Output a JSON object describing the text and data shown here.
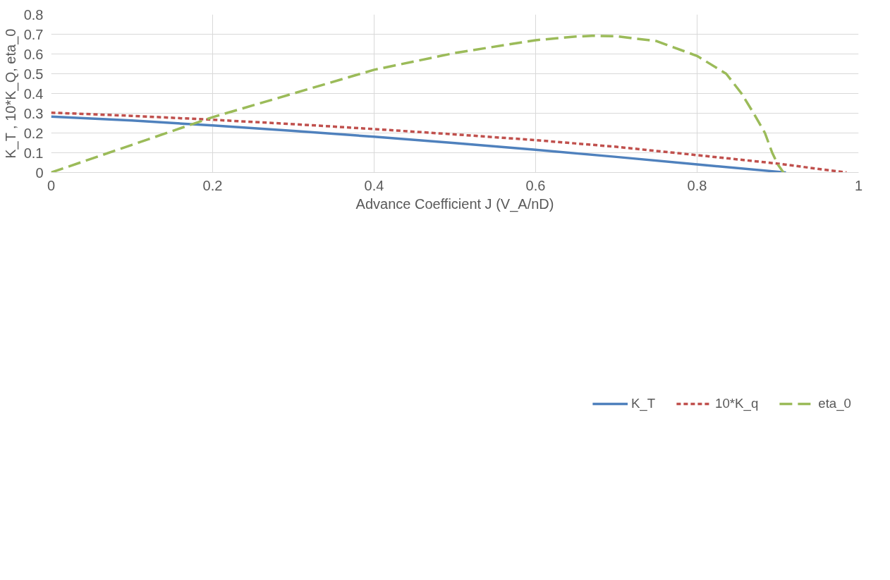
{
  "chart_data": {
    "type": "line",
    "xlabel": "Advance Coefficient J (V_A/nD)",
    "ylabel": "K_T , 10*K_Q, eta_0",
    "xlim": [
      0,
      1
    ],
    "ylim": [
      0,
      0.8
    ],
    "xticks": [
      0,
      0.2,
      0.4,
      0.6,
      0.8,
      1
    ],
    "yticks": [
      0,
      0.1,
      0.2,
      0.3,
      0.4,
      0.5,
      0.6,
      0.7,
      0.8
    ],
    "grid": true,
    "legend": "bottom",
    "series": [
      {
        "name": "K_T",
        "color": "#4f81bd",
        "line_style": "solid",
        "x": [
          0,
          0.1,
          0.2,
          0.3,
          0.4,
          0.5,
          0.6,
          0.7,
          0.8,
          0.9,
          0.91
        ],
        "values": [
          0.283,
          0.263,
          0.238,
          0.211,
          0.181,
          0.149,
          0.115,
          0.079,
          0.041,
          0.004,
          0
        ]
      },
      {
        "name": "10*K_q",
        "color": "#c0504d",
        "line_style": "dotted",
        "x": [
          0,
          0.1,
          0.2,
          0.3,
          0.4,
          0.5,
          0.6,
          0.7,
          0.8,
          0.9,
          0.985
        ],
        "values": [
          0.303,
          0.287,
          0.267,
          0.245,
          0.22,
          0.193,
          0.164,
          0.13,
          0.088,
          0.045,
          0
        ]
      },
      {
        "name": "eta_0",
        "color": "#9bbb59",
        "line_style": "dashed",
        "x": [
          0,
          0.1,
          0.2,
          0.3,
          0.4,
          0.5,
          0.6,
          0.65,
          0.67,
          0.7,
          0.75,
          0.8,
          0.836,
          0.855,
          0.87,
          0.884,
          0.893,
          0.9,
          0.907
        ],
        "values": [
          0,
          0.14,
          0.28,
          0.4,
          0.52,
          0.605,
          0.67,
          0.688,
          0.692,
          0.69,
          0.665,
          0.59,
          0.5,
          0.4,
          0.3,
          0.2,
          0.1,
          0.04,
          0
        ]
      }
    ]
  }
}
